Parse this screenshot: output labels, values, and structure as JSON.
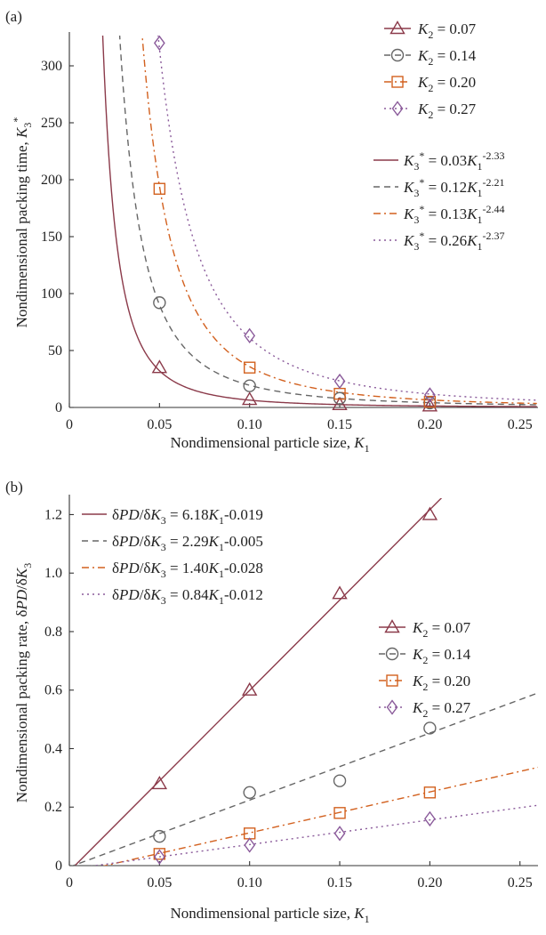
{
  "chart_data": [
    {
      "panel_label": "(a)",
      "type": "line",
      "xlabel": "Nondimensional particle size, K1",
      "ylabel": "Nondimensional packing time, K3*",
      "xlim": [
        0,
        0.26
      ],
      "ylim": [
        0,
        325
      ],
      "xticks": [
        "0",
        "0.05",
        "0.10",
        "0.15",
        "0.20",
        "0.25"
      ],
      "yticks": [
        "0",
        "50",
        "100",
        "150",
        "200",
        "250",
        "300"
      ],
      "grid": false,
      "legend_markers_placement": "top-right",
      "legend_fits_placement": "right",
      "series": [
        {
          "name": "K2 = 0.07",
          "marker": "triangle",
          "color": "#8b3a4a",
          "linestyle": "solid",
          "x": [
            0.05,
            0.1,
            0.15,
            0.2
          ],
          "y": [
            35,
            7,
            2.5,
            1.3
          ],
          "fit": {
            "label": "K3* = 0.03K1-2.33",
            "a": 0.03,
            "b": -2.33
          }
        },
        {
          "name": "K2 = 0.14",
          "marker": "circle",
          "color": "#666666",
          "linestyle": "dashed",
          "x": [
            0.05,
            0.1,
            0.15,
            0.2
          ],
          "y": [
            92,
            19,
            8,
            4
          ],
          "fit": {
            "label": "K3* = 0.12K1-2.21",
            "a": 0.12,
            "b": -2.21
          }
        },
        {
          "name": "K2 = 0.20",
          "marker": "square",
          "color": "#d2601e",
          "linestyle": "dashdot",
          "x": [
            0.05,
            0.1,
            0.15,
            0.2
          ],
          "y": [
            192,
            35,
            12,
            5
          ],
          "fit": {
            "label": "K3* = 0.13K1-2.44",
            "a": 0.13,
            "b": -2.44
          }
        },
        {
          "name": "K2 = 0.27",
          "marker": "diamond",
          "color": "#8a5a9a",
          "linestyle": "dotted",
          "x": [
            0.05,
            0.1,
            0.15,
            0.2
          ],
          "y": [
            320,
            63,
            23,
            11
          ],
          "fit": {
            "label": "K3* = 0.26K1-2.37",
            "a": 0.26,
            "b": -2.37
          }
        }
      ]
    },
    {
      "panel_label": "(b)",
      "type": "line",
      "xlabel": "Nondimensional particle size, K1",
      "ylabel": "Nondimensional packing rate, δPD/δK3",
      "xlim": [
        0,
        0.26
      ],
      "ylim": [
        0,
        1.25
      ],
      "xticks": [
        "0",
        "0.05",
        "0.10",
        "0.15",
        "0.20",
        "0.25"
      ],
      "yticks": [
        "0",
        "0.2",
        "0.4",
        "0.6",
        "0.8",
        "1.0",
        "1.2"
      ],
      "grid": false,
      "legend_fits_placement": "top-left",
      "legend_markers_placement": "right",
      "series": [
        {
          "name": "K2 = 0.07",
          "marker": "triangle",
          "color": "#8b3a4a",
          "linestyle": "solid",
          "x": [
            0.05,
            0.1,
            0.15,
            0.2
          ],
          "y": [
            0.28,
            0.6,
            0.93,
            1.2
          ],
          "fit": {
            "label": "δPD/δK3 = 6.18K1-0.019",
            "m": 6.18,
            "c": -0.019
          }
        },
        {
          "name": "K2 = 0.14",
          "marker": "circle",
          "color": "#666666",
          "linestyle": "dashed",
          "x": [
            0.05,
            0.1,
            0.15,
            0.2
          ],
          "y": [
            0.1,
            0.25,
            0.29,
            0.47
          ],
          "fit": {
            "label": "δPD/δK3 = 2.29K1-0.005",
            "m": 2.29,
            "c": -0.005
          }
        },
        {
          "name": "K2 = 0.20",
          "marker": "square",
          "color": "#d2601e",
          "linestyle": "dashdot",
          "x": [
            0.05,
            0.1,
            0.15,
            0.2
          ],
          "y": [
            0.04,
            0.11,
            0.18,
            0.25
          ],
          "fit": {
            "label": "δPD/δK3 = 1.40K1-0.028",
            "m": 1.4,
            "c": -0.028
          }
        },
        {
          "name": "K2 = 0.27",
          "marker": "diamond",
          "color": "#8a5a9a",
          "linestyle": "dotted",
          "x": [
            0.05,
            0.1,
            0.15,
            0.2
          ],
          "y": [
            0.03,
            0.07,
            0.11,
            0.16
          ],
          "fit": {
            "label": "δPD/δK3 = 0.84K1-0.012",
            "m": 0.84,
            "c": -0.012
          }
        }
      ]
    }
  ]
}
